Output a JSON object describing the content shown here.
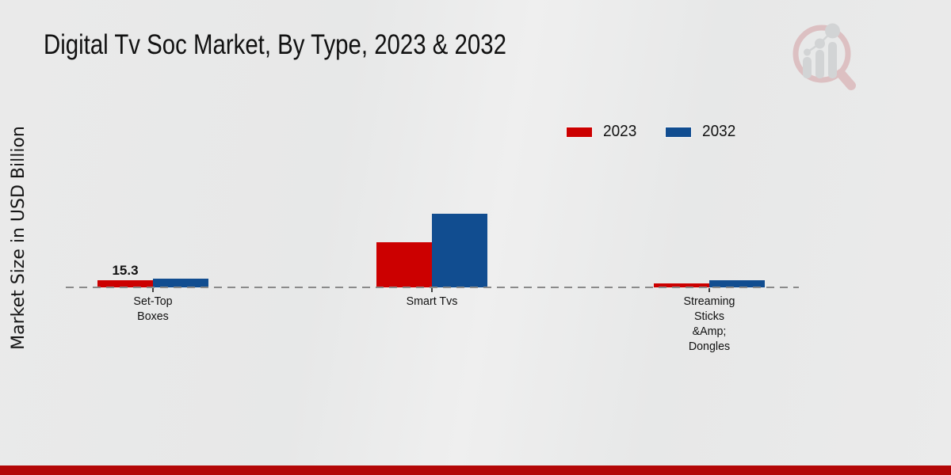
{
  "page": {
    "background": "#e9eaea",
    "bottom_bar_color": "#b30707"
  },
  "chart_data": {
    "type": "bar",
    "title": "Digital Tv Soc Market, By Type, 2023 & 2032",
    "xlabel": "",
    "ylabel": "Market Size in USD Billion",
    "categories": [
      "Set-Top Boxes",
      "Smart Tvs",
      "Streaming Sticks &Amp; Dongles"
    ],
    "category_lines": [
      [
        "Set-Top",
        "Boxes"
      ],
      [
        "Smart Tvs"
      ],
      [
        "Streaming",
        "Sticks",
        "&Amp;",
        "Dongles"
      ]
    ],
    "series": [
      {
        "name": "2023",
        "color": "#cc0000",
        "values": [
          15.3,
          96.9,
          8.5
        ]
      },
      {
        "name": "2032",
        "color": "#114d90",
        "values": [
          18.7,
          158.1,
          15.3
        ]
      }
    ],
    "data_labels": [
      {
        "series_index": 0,
        "category_index": 0,
        "text": "15.3"
      }
    ],
    "ylim": [
      0,
      170
    ],
    "grid": false,
    "baseline_style": "dashed",
    "legend_position": "upper right"
  },
  "watermark": {
    "name": "market-research-magnifier-logo",
    "pink": "#cf8f93",
    "gray": "#b9bcbf"
  }
}
